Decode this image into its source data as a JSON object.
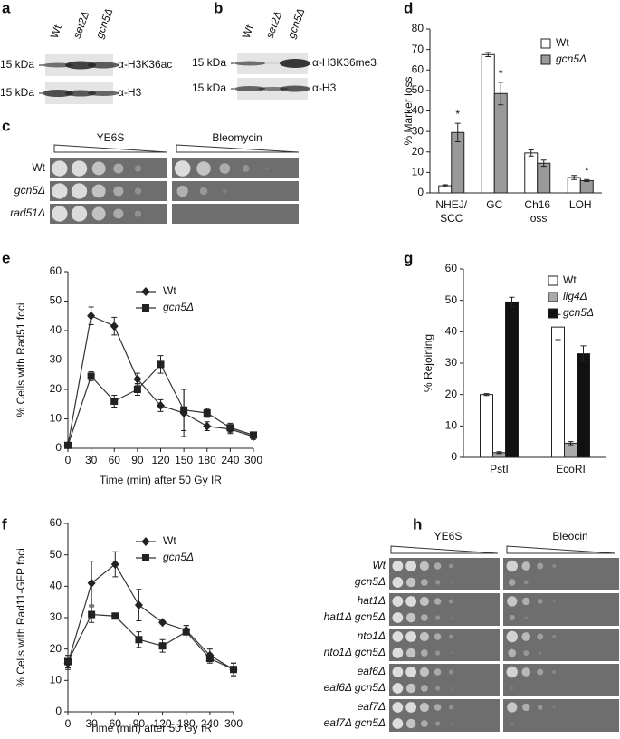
{
  "panel_labels": [
    "a",
    "b",
    "c",
    "d",
    "e",
    "f",
    "g",
    "h"
  ],
  "blot_a": {
    "lanes": [
      "Wt",
      "set2Δ",
      "gcn5Δ"
    ],
    "markers": [
      "15 kDa",
      "15 kDa"
    ],
    "antibodies": [
      "α-H3K36ac",
      "α-H3"
    ]
  },
  "blot_b": {
    "lanes": [
      "Wt",
      "set2Δ",
      "gcn5Δ"
    ],
    "markers": [
      "15 kDa",
      "15 kDa"
    ],
    "antibodies": [
      "α-H3K36me3",
      "α-H3"
    ]
  },
  "spot_c": {
    "conditions": [
      "YE6S",
      "Bleomycin"
    ],
    "strains": [
      "Wt",
      "gcn5Δ",
      "rad51Δ"
    ]
  },
  "spot_h": {
    "conditions": [
      "YE6S",
      "Bleocin"
    ],
    "strains": [
      [
        "Wt",
        "gcn5Δ"
      ],
      [
        "hat1Δ",
        "hat1Δ gcn5Δ"
      ],
      [
        "nto1Δ",
        "nto1Δ gcn5Δ"
      ],
      [
        "eaf6Δ",
        "eaf6Δ gcn5Δ"
      ],
      [
        "eaf7Δ",
        "eaf7Δ gcn5Δ"
      ]
    ]
  },
  "chart_data": [
    {
      "type": "bar",
      "y_label": "% Marker loss",
      "categories": [
        "NHEJ/ SCC",
        "GC",
        "Ch16 loss",
        "LOH"
      ],
      "series": [
        {
          "name": "Wt",
          "color": "#ffffff",
          "values": [
            3.5,
            67.5,
            19.5,
            7.5
          ],
          "errors": [
            0.5,
            1,
            1.5,
            1
          ]
        },
        {
          "name": "gcn5Δ",
          "color": "#9a9a9a",
          "values": [
            29.5,
            48.5,
            14.5,
            6
          ],
          "errors": [
            4.5,
            5.5,
            1.5,
            0.5
          ]
        }
      ],
      "annotations": [
        "*",
        "*",
        "*"
      ],
      "ylim": [
        0,
        80
      ],
      "yticks": [
        0,
        10,
        20,
        30,
        40,
        50,
        60,
        70,
        80
      ]
    },
    {
      "type": "line",
      "x_label": "Time (min) after 50 Gy IR",
      "y_label": "% Cells with Rad51 foci",
      "categories": [
        "0",
        "30",
        "60",
        "90",
        "120",
        "150",
        "180",
        "240",
        "300"
      ],
      "series": [
        {
          "name": "Wt",
          "color": "#333333",
          "values": [
            1,
            45,
            41.5,
            23.5,
            14.5,
            12,
            7.5,
            6.5,
            4
          ],
          "errors": [
            1,
            3,
            3,
            2,
            2,
            8,
            1.5,
            1.5,
            1
          ]
        },
        {
          "name": "gcn5Δ",
          "color": "#333333",
          "values": [
            1,
            24.5,
            16,
            20,
            28.5,
            13,
            12,
            7,
            4.5
          ],
          "errors": [
            1,
            1.5,
            2,
            2,
            3,
            7,
            1.5,
            1.5,
            1
          ]
        }
      ],
      "ylim": [
        0,
        60
      ],
      "yticks": [
        0,
        10,
        20,
        30,
        40,
        50,
        60
      ]
    },
    {
      "type": "line",
      "x_label": "Time (min) after 50 Gy IR",
      "y_label": "% Cells with Rad11-GFP foci",
      "categories": [
        "0",
        "30",
        "60",
        "90",
        "120",
        "180",
        "240",
        "300"
      ],
      "series": [
        {
          "name": "Wt",
          "color": "#333333",
          "values": [
            15.5,
            41,
            47,
            34,
            28.5,
            26,
            18,
            13.5
          ],
          "errors": [
            2,
            7,
            4,
            5,
            0.5,
            1.5,
            2,
            2
          ]
        },
        {
          "name": "gcn5Δ",
          "color": "#333333",
          "values": [
            16,
            31,
            30.5,
            23,
            21,
            25.5,
            17,
            13.5
          ],
          "errors": [
            2,
            2.5,
            0.5,
            2.5,
            2,
            2,
            1.5,
            2
          ]
        }
      ],
      "ylim": [
        0,
        60
      ],
      "yticks": [
        0,
        10,
        20,
        30,
        40,
        50,
        60
      ]
    },
    {
      "type": "bar",
      "y_label": "% Rejoining",
      "categories": [
        "PstI",
        "EcoRI"
      ],
      "series": [
        {
          "name": "Wt",
          "color": "#ffffff",
          "values": [
            20,
            41.5
          ],
          "errors": [
            0.3,
            4
          ]
        },
        {
          "name": "lig4Δ",
          "color": "#aaaaaa",
          "values": [
            1.5,
            4.5
          ],
          "errors": [
            0.3,
            0.5
          ]
        },
        {
          "name": "gcn5Δ",
          "color": "#111111",
          "values": [
            49.5,
            33
          ],
          "errors": [
            1.5,
            2.5
          ]
        }
      ],
      "ylim": [
        0,
        60
      ],
      "yticks": [
        0,
        10,
        20,
        30,
        40,
        50,
        60
      ]
    }
  ]
}
